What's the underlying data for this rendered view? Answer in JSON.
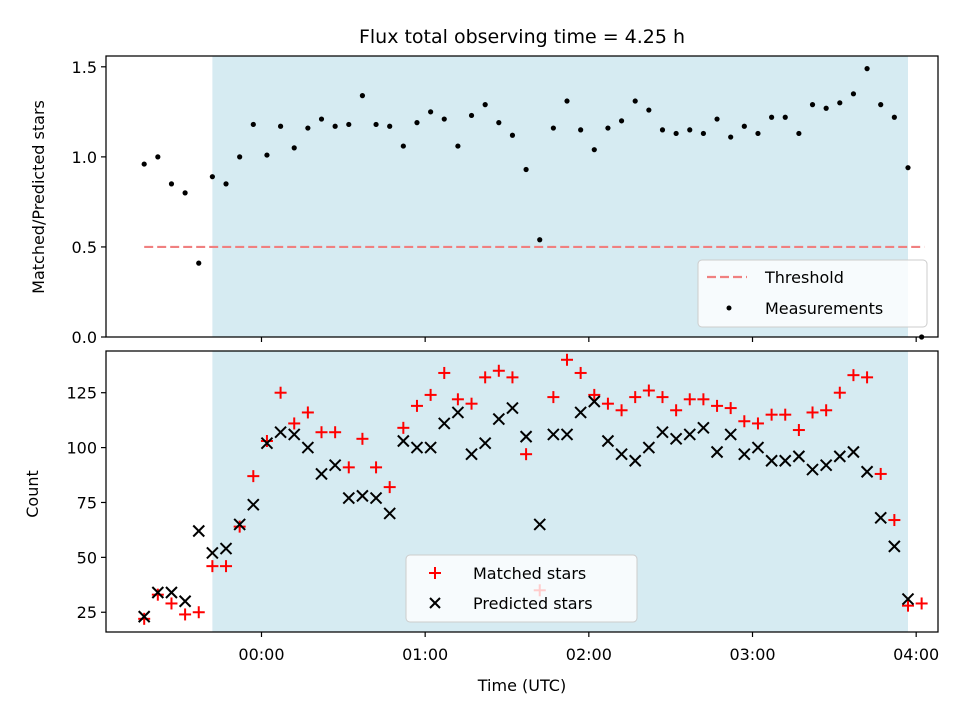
{
  "chart_data": [
    {
      "type": "scatter",
      "title": "Flux total observing time = 4.25 h",
      "ylabel": "Matched/Predicted stars",
      "xlabel": "",
      "ylim": [
        0,
        1.56
      ],
      "yticks": [
        0.0,
        0.5,
        1.0,
        1.5
      ],
      "ytick_labels": [
        "0.0",
        "0.5",
        "1.0",
        "1.5"
      ],
      "x_unit": "minutes from 00:00 UTC",
      "xlim": [
        -57,
        248
      ],
      "shaded_interval": [
        -18,
        237
      ],
      "shaded_color": "#add8e6",
      "threshold": {
        "name": "Threshold",
        "value": 0.5,
        "x_range": [
          -43,
          243
        ],
        "color": "#f08080",
        "style": "dashed"
      },
      "measurements": {
        "name": "Measurements",
        "color": "#000000",
        "x": [
          -43,
          -38,
          -33,
          -28,
          -23,
          -18,
          -13,
          -8,
          -3,
          2,
          7,
          12,
          17,
          22,
          27,
          32,
          37,
          42,
          47,
          52,
          57,
          62,
          67,
          72,
          77,
          82,
          87,
          92,
          97,
          102,
          107,
          112,
          117,
          122,
          127,
          132,
          137,
          142,
          147,
          152,
          157,
          162,
          167,
          172,
          177,
          182,
          187,
          192,
          197,
          202,
          207,
          212,
          217,
          222,
          227,
          232,
          237,
          242
        ],
        "y": [
          0.96,
          1.0,
          0.85,
          0.8,
          0.41,
          0.89,
          0.85,
          1.0,
          1.18,
          1.01,
          1.17,
          1.05,
          1.16,
          1.21,
          1.17,
          1.18,
          1.34,
          1.18,
          1.17,
          1.06,
          1.19,
          1.25,
          1.21,
          1.06,
          1.23,
          1.29,
          1.19,
          1.12,
          0.93,
          0.54,
          1.16,
          1.31,
          1.15,
          1.04,
          1.16,
          1.2,
          1.31,
          1.26,
          1.15,
          1.13,
          1.15,
          1.13,
          1.21,
          1.11,
          1.17,
          1.13,
          1.22,
          1.22,
          1.13,
          1.29,
          1.27,
          1.3,
          1.35,
          1.49,
          1.29,
          1.22,
          0.94,
          0.0
        ]
      },
      "legend": {
        "placement": "lower-right",
        "entries": [
          "Threshold",
          "Measurements"
        ]
      }
    },
    {
      "type": "scatter",
      "title": "",
      "ylabel": "Count",
      "xlabel": "Time (UTC)",
      "ylim": [
        16,
        144
      ],
      "yticks": [
        25,
        50,
        75,
        100,
        125
      ],
      "ytick_labels": [
        "25",
        "50",
        "75",
        "100",
        "125"
      ],
      "xlim": [
        -57,
        248
      ],
      "xticks": [
        0,
        60,
        120,
        180,
        240
      ],
      "xtick_labels": [
        "00:00",
        "01:00",
        "02:00",
        "03:00",
        "04:00"
      ],
      "shaded_interval": [
        -18,
        237
      ],
      "series": [
        {
          "name": "Matched stars",
          "marker": "plus",
          "color": "#ff0000",
          "x": [
            -43,
            -38,
            -33,
            -28,
            -23,
            -18,
            -13,
            -8,
            -3,
            2,
            7,
            12,
            17,
            22,
            27,
            32,
            37,
            42,
            47,
            52,
            57,
            62,
            67,
            72,
            77,
            82,
            87,
            92,
            97,
            102,
            107,
            112,
            117,
            122,
            127,
            132,
            137,
            142,
            147,
            152,
            157,
            162,
            167,
            172,
            177,
            182,
            187,
            192,
            197,
            202,
            207,
            212,
            217,
            222,
            227,
            232,
            237,
            242
          ],
          "y": [
            22,
            33,
            29,
            24,
            25,
            46,
            46,
            64,
            87,
            103,
            125,
            111,
            116,
            107,
            107,
            91,
            104,
            91,
            82,
            109,
            119,
            124,
            134,
            122,
            120,
            132,
            135,
            132,
            97,
            35,
            123,
            140,
            134,
            124,
            120,
            117,
            123,
            126,
            123,
            117,
            122,
            122,
            119,
            118,
            112,
            111,
            115,
            115,
            108,
            116,
            117,
            125,
            133,
            132,
            88,
            67,
            28,
            29
          ]
        },
        {
          "name": "Predicted stars",
          "marker": "x",
          "color": "#000000",
          "x": [
            -43,
            -38,
            -33,
            -28,
            -23,
            -18,
            -13,
            -8,
            -3,
            2,
            7,
            12,
            17,
            22,
            27,
            32,
            37,
            42,
            47,
            52,
            57,
            62,
            67,
            72,
            77,
            82,
            87,
            92,
            97,
            102,
            107,
            112,
            117,
            122,
            127,
            132,
            137,
            142,
            147,
            152,
            157,
            162,
            167,
            172,
            177,
            182,
            187,
            192,
            197,
            202,
            207,
            212,
            217,
            222,
            227,
            232,
            237
          ],
          "y": [
            23,
            34,
            34,
            30,
            62,
            52,
            54,
            65,
            74,
            102,
            107,
            106,
            100,
            88,
            92,
            77,
            78,
            77,
            70,
            103,
            100,
            100,
            111,
            116,
            97,
            102,
            113,
            118,
            105,
            65,
            106,
            106,
            116,
            121,
            103,
            97,
            94,
            100,
            107,
            104,
            106,
            109,
            98,
            106,
            97,
            100,
            94,
            94,
            96,
            90,
            92,
            96,
            98,
            89,
            68,
            55,
            31
          ]
        }
      ],
      "legend": {
        "placement": "lower-center",
        "entries": [
          "Matched stars",
          "Predicted stars"
        ]
      }
    }
  ]
}
